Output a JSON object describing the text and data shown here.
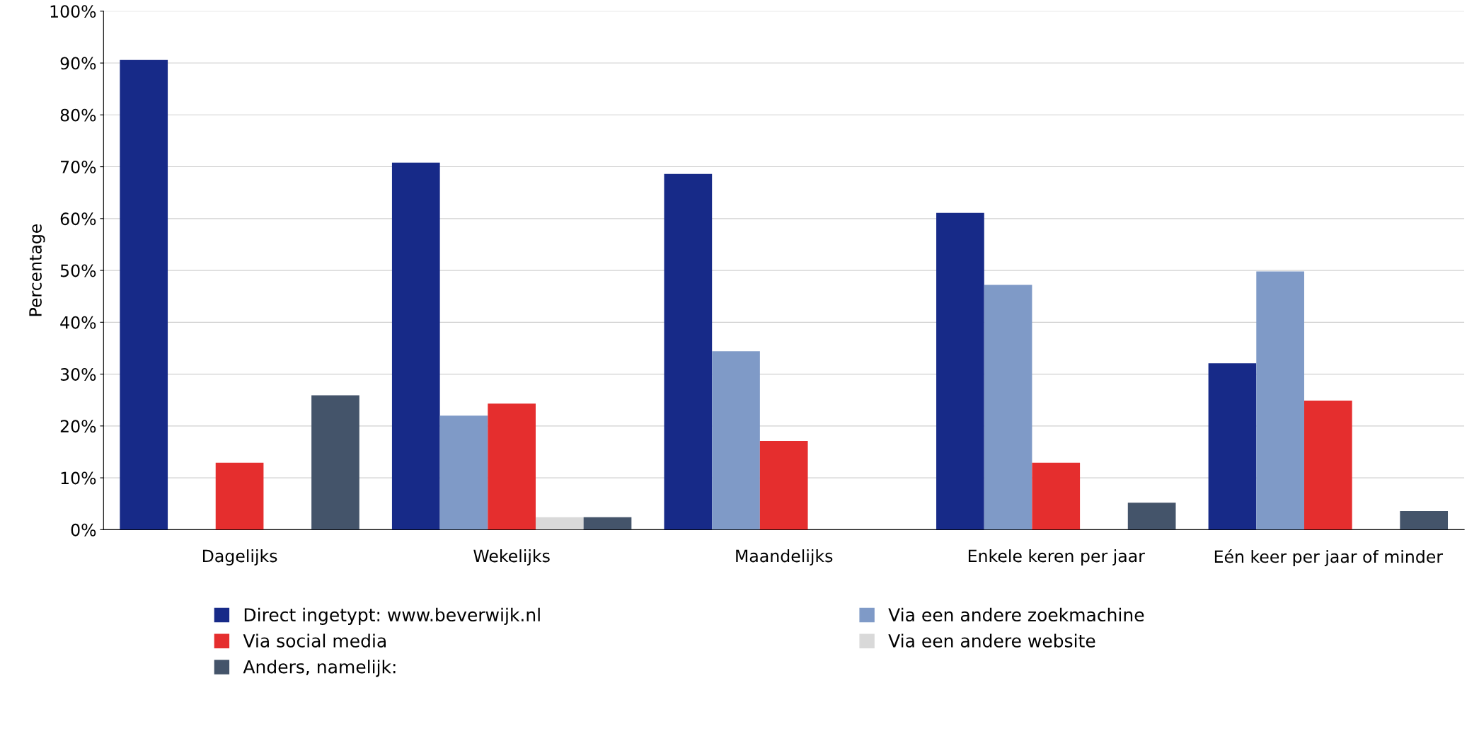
{
  "chart_data": {
    "type": "bar",
    "ylabel": "Percentage",
    "categories": [
      "Dagelijks",
      "Wekelijks",
      "Maandelijks",
      "Enkele keren per jaar",
      "Eén keer per jaar of minder"
    ],
    "series": [
      {
        "name": "Direct ingetypt: www.beverwijk.nl",
        "color": "#172a88",
        "values": [
          90.6,
          70.8,
          68.6,
          61.1,
          32.1
        ]
      },
      {
        "name": "Via een andere zoekmachine",
        "color": "#7f9ac7",
        "values": [
          0,
          22.0,
          34.4,
          47.2,
          49.8
        ]
      },
      {
        "name": "Via social media",
        "color": "#e52e2e",
        "values": [
          12.9,
          24.3,
          17.1,
          12.9,
          24.9
        ]
      },
      {
        "name": "Via een andere website",
        "color": "#d9d9d9",
        "values": [
          0,
          2.4,
          0,
          0,
          0
        ]
      },
      {
        "name": "Anders, namelijk:",
        "color": "#44546a",
        "values": [
          25.9,
          2.4,
          0,
          5.2,
          3.6
        ]
      }
    ],
    "ylim": [
      0,
      100
    ],
    "yticks": [
      {
        "value": 0,
        "label": "0%"
      },
      {
        "value": 10,
        "label": "10%"
      },
      {
        "value": 20,
        "label": "20%"
      },
      {
        "value": 30,
        "label": "30%"
      },
      {
        "value": 40,
        "label": "40%"
      },
      {
        "value": 50,
        "label": "50%"
      },
      {
        "value": 60,
        "label": "60%"
      },
      {
        "value": 70,
        "label": "70%"
      },
      {
        "value": 80,
        "label": "80%"
      },
      {
        "value": 90,
        "label": "90%"
      },
      {
        "value": 100,
        "label": "100%"
      }
    ],
    "grid": "y",
    "legend": "bottom"
  }
}
